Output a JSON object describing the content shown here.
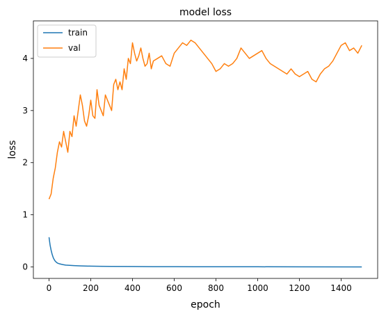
{
  "chart_data": {
    "type": "line",
    "title": "model loss",
    "xlabel": "epoch",
    "ylabel": "loss",
    "xlim": [
      -75,
      1575
    ],
    "ylim": [
      -0.22,
      4.72
    ],
    "xticks": [
      0,
      200,
      400,
      600,
      800,
      1000,
      1200,
      1400
    ],
    "yticks": [
      0,
      1,
      2,
      3,
      4
    ],
    "grid": false,
    "legend_position": "upper left",
    "series": [
      {
        "name": "train",
        "color": "#1f77b4",
        "x": [
          0,
          5,
          10,
          15,
          20,
          25,
          30,
          35,
          40,
          50,
          60,
          70,
          80,
          100,
          120,
          150,
          200,
          250,
          300,
          400,
          500,
          700,
          1000,
          1200,
          1499
        ],
        "y": [
          0.57,
          0.42,
          0.32,
          0.24,
          0.18,
          0.14,
          0.11,
          0.09,
          0.075,
          0.06,
          0.05,
          0.042,
          0.036,
          0.03,
          0.025,
          0.02,
          0.015,
          0.012,
          0.01,
          0.008,
          0.006,
          0.004,
          0.003,
          0.002,
          0.001
        ]
      },
      {
        "name": "val",
        "color": "#ff7f0e",
        "x": [
          0,
          10,
          20,
          30,
          40,
          50,
          60,
          70,
          80,
          90,
          100,
          110,
          120,
          130,
          140,
          150,
          160,
          170,
          180,
          190,
          200,
          210,
          220,
          230,
          240,
          250,
          260,
          270,
          280,
          290,
          300,
          310,
          320,
          330,
          340,
          350,
          360,
          370,
          380,
          390,
          400,
          410,
          420,
          430,
          440,
          450,
          460,
          470,
          480,
          490,
          500,
          520,
          540,
          560,
          580,
          600,
          620,
          640,
          660,
          680,
          700,
          720,
          740,
          760,
          780,
          800,
          820,
          840,
          860,
          880,
          900,
          920,
          940,
          960,
          980,
          1000,
          1020,
          1040,
          1060,
          1080,
          1100,
          1120,
          1140,
          1160,
          1180,
          1200,
          1220,
          1240,
          1260,
          1280,
          1300,
          1320,
          1340,
          1360,
          1380,
          1400,
          1420,
          1440,
          1460,
          1480,
          1499
        ],
        "y": [
          1.3,
          1.4,
          1.7,
          1.9,
          2.2,
          2.4,
          2.3,
          2.6,
          2.4,
          2.2,
          2.6,
          2.5,
          2.9,
          2.7,
          3.0,
          3.3,
          3.1,
          2.8,
          2.7,
          2.9,
          3.2,
          2.9,
          2.85,
          3.4,
          3.1,
          3.0,
          2.9,
          3.3,
          3.2,
          3.1,
          3.0,
          3.5,
          3.6,
          3.4,
          3.55,
          3.4,
          3.8,
          3.6,
          4.0,
          3.9,
          4.3,
          4.1,
          3.95,
          4.05,
          4.2,
          4.0,
          3.85,
          3.9,
          4.1,
          3.8,
          3.95,
          4.0,
          4.05,
          3.9,
          3.85,
          4.1,
          4.2,
          4.3,
          4.25,
          4.35,
          4.3,
          4.2,
          4.1,
          4.0,
          3.9,
          3.75,
          3.8,
          3.9,
          3.85,
          3.9,
          4.0,
          4.2,
          4.1,
          4.0,
          4.05,
          4.1,
          4.15,
          4.0,
          3.9,
          3.85,
          3.8,
          3.75,
          3.7,
          3.8,
          3.7,
          3.65,
          3.7,
          3.75,
          3.6,
          3.55,
          3.7,
          3.8,
          3.85,
          3.95,
          4.1,
          4.25,
          4.3,
          4.15,
          4.2,
          4.1,
          4.25
        ]
      }
    ]
  }
}
